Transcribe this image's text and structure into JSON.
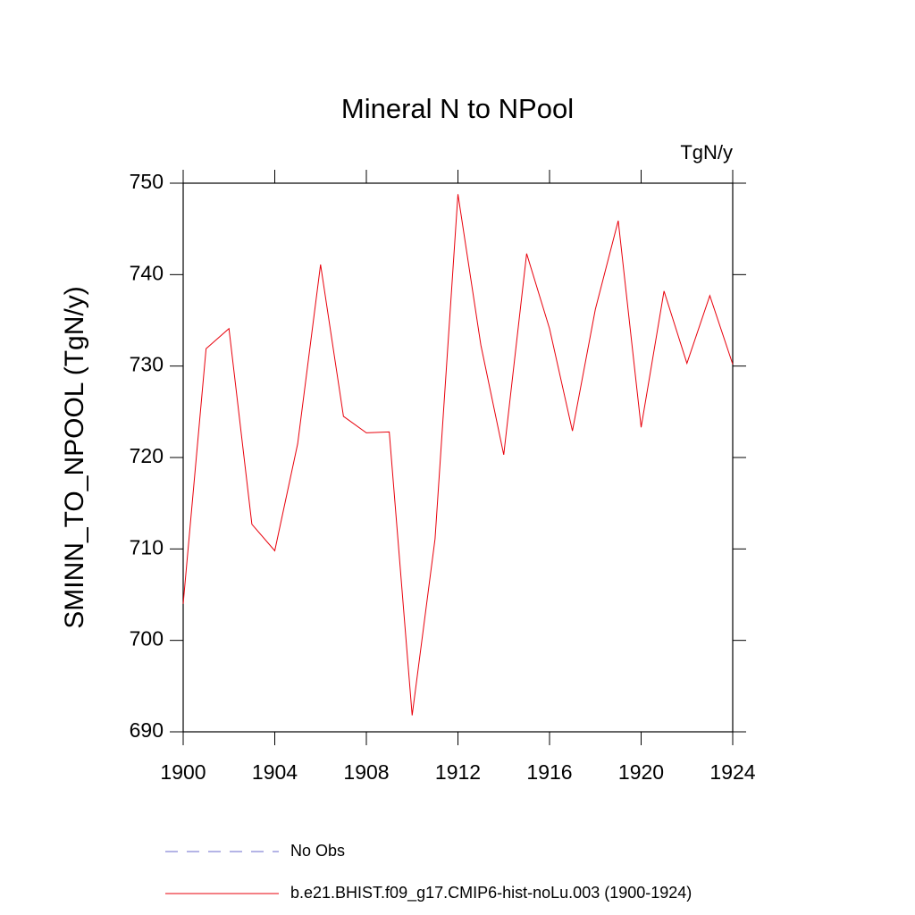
{
  "chart_data": {
    "type": "line",
    "title": "Mineral N to NPool",
    "units": "TgN/y",
    "y_label": "SMINN_TO_NPOOL  (TgN/y)",
    "x": [
      1900,
      1901,
      1902,
      1903,
      1904,
      1905,
      1906,
      1907,
      1908,
      1909,
      1910,
      1911,
      1912,
      1913,
      1914,
      1915,
      1916,
      1917,
      1918,
      1919,
      1920,
      1921,
      1922,
      1923,
      1924
    ],
    "series": [
      {
        "name": "No Obs",
        "color": "#6a6acd",
        "dashed": true,
        "values": [
          null,
          null,
          null,
          null,
          null,
          null,
          null,
          null,
          null,
          null,
          null,
          null,
          null,
          null,
          null,
          null,
          null,
          null,
          null,
          null,
          null,
          null,
          null,
          null,
          null
        ]
      },
      {
        "name": "b.e21.BHIST.f09_g17.CMIP6-hist-noLu.003 (1900-1924)",
        "color": "#e8000b",
        "dashed": false,
        "values": [
          704.0,
          731.9,
          734.1,
          712.7,
          709.8,
          721.5,
          741.1,
          724.5,
          722.7,
          722.8,
          691.8,
          711.1,
          748.8,
          732.3,
          720.3,
          742.3,
          734.1,
          722.9,
          736.2,
          745.9,
          723.3,
          738.2,
          730.3,
          737.7,
          730.2
        ]
      }
    ],
    "xlim": [
      1900,
      1924
    ],
    "xticks": [
      1900,
      1904,
      1908,
      1912,
      1916,
      1920,
      1924
    ],
    "ylim": [
      690,
      750
    ],
    "yticks": [
      690,
      700,
      710,
      720,
      730,
      740,
      750
    ]
  }
}
